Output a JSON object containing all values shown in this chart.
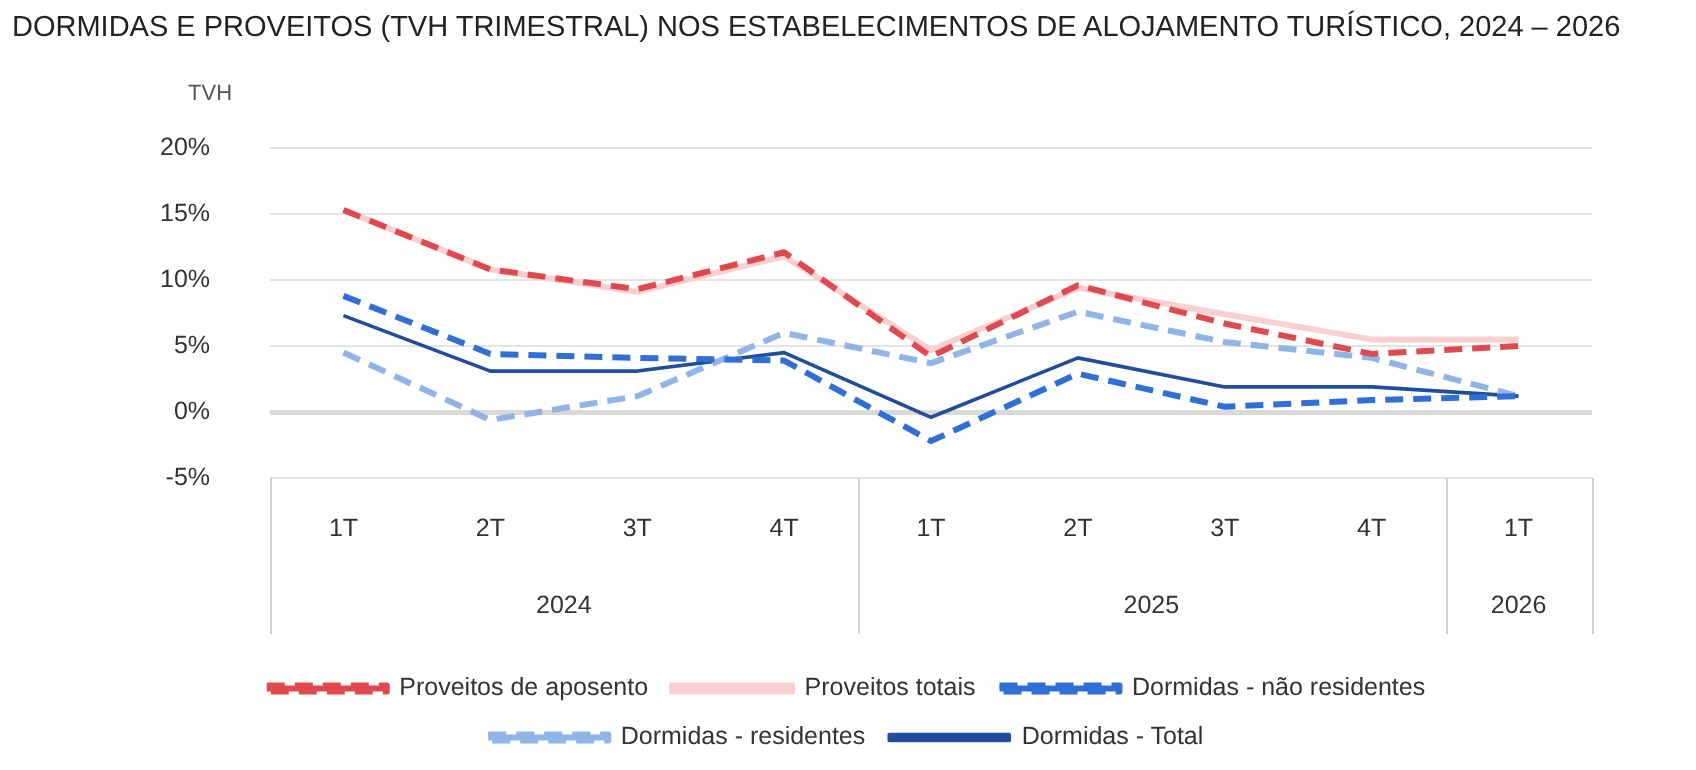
{
  "chart_data": {
    "type": "line",
    "title": "DORMIDAS E PROVEITOS (TVH TRIMESTRAL) NOS ESTABELECIMENTOS DE ALOJAMENTO TURÍSTICO, 2024 – 2026",
    "ylabel": "TVH",
    "categories": [
      "1T",
      "2T",
      "3T",
      "4T",
      "1T",
      "2T",
      "3T",
      "4T",
      "1T"
    ],
    "annotations": [
      "2024",
      "2025",
      "2026"
    ],
    "ylim": [
      -5,
      20
    ],
    "yticks": [
      {
        "value": -5,
        "label": "-5%"
      },
      {
        "value": 0,
        "label": "0%"
      },
      {
        "value": 5,
        "label": "5%"
      },
      {
        "value": 10,
        "label": "10%"
      },
      {
        "value": 15,
        "label": "15%"
      },
      {
        "value": 20,
        "label": "20%"
      }
    ],
    "grid": "y",
    "legend": "bottom",
    "marker": "none",
    "series": [
      {
        "name": "Dormidas - Total",
        "color": "#1f4e9c",
        "line_style": "solid",
        "values": [
          7.3,
          3.1,
          3.1,
          4.5,
          -0.4,
          4.1,
          1.9,
          1.9,
          1.2
        ]
      },
      {
        "name": "Dormidas - residentes",
        "color": "#8fb4e8",
        "line_style": "dashed",
        "values": [
          4.5,
          -0.6,
          1.2,
          6.0,
          3.7,
          7.6,
          5.3,
          4.1,
          1.2
        ]
      },
      {
        "name": "Dormidas - não residentes",
        "color": "#2f6fd6",
        "line_style": "dashed",
        "values": [
          8.8,
          4.4,
          4.1,
          3.9,
          -2.2,
          2.9,
          0.4,
          0.9,
          1.2
        ]
      },
      {
        "name": "Proveitos totais",
        "color": "#f8d0d0",
        "line_style": "solid",
        "values": [
          15.3,
          10.8,
          9.1,
          11.8,
          4.7,
          9.4,
          7.4,
          5.5,
          5.5
        ]
      },
      {
        "name": "Proveitos de aposento",
        "color": "#e04a4f",
        "line_style": "dashed",
        "values": [
          15.3,
          10.8,
          9.3,
          12.1,
          4.2,
          9.6,
          6.7,
          4.4,
          5.0
        ]
      }
    ]
  }
}
